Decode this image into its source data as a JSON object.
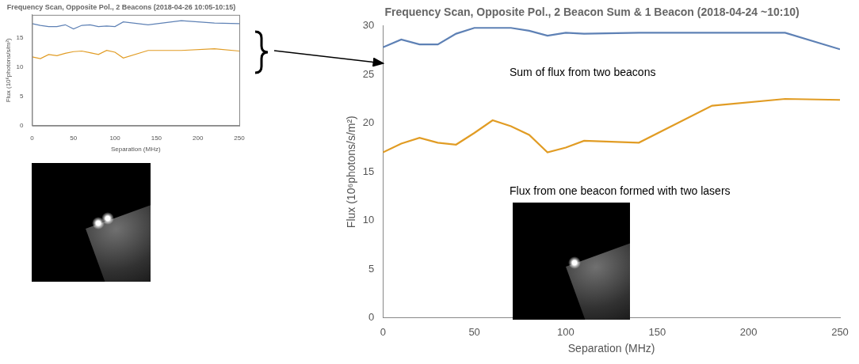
{
  "chart_data": [
    {
      "type": "line",
      "title": "Frequency Scan, Opposite Pol., 2 Beacons (2018-04-26 10:05-10:15)",
      "x_label": "Separation (MHz)",
      "y_label": "Flux (10⁶photons/s/m²)",
      "x": [
        0,
        10,
        20,
        30,
        40,
        50,
        60,
        70,
        80,
        90,
        100,
        110,
        140,
        180,
        220,
        250
      ],
      "series": [
        {
          "color": "#5e81b5",
          "values": [
            17.5,
            17.2,
            17.0,
            17.0,
            17.3,
            16.6,
            17.2,
            17.3,
            17.0,
            17.1,
            17.0,
            17.8,
            17.3,
            18.0,
            17.6,
            17.5
          ]
        },
        {
          "color": "#e19c24",
          "values": [
            11.8,
            11.5,
            12.2,
            12.0,
            12.4,
            12.7,
            12.8,
            12.5,
            12.2,
            12.9,
            12.6,
            11.6,
            12.9,
            12.9,
            13.2,
            12.8
          ]
        }
      ],
      "xlim": [
        0,
        250
      ],
      "xticks": [
        0,
        50,
        100,
        150,
        200,
        250
      ],
      "ylim": [
        0,
        19
      ],
      "yticks": [
        0,
        5,
        10,
        15
      ],
      "grid": false
    },
    {
      "type": "line",
      "title": "Frequency Scan, Opposite Pol., 2 Beacon Sum & 1 Beacon (2018-04-24 ~10:10)",
      "x_label": "Separation (MHz)",
      "y_label": "Flux (10⁶photons/s/m²)",
      "x": [
        0,
        10,
        20,
        30,
        40,
        50,
        60,
        70,
        80,
        90,
        100,
        110,
        140,
        180,
        220,
        250
      ],
      "series": [
        {
          "color": "#5e81b5",
          "values": [
            27.8,
            28.6,
            28.1,
            28.1,
            29.2,
            29.8,
            29.8,
            29.8,
            29.5,
            29.0,
            29.3,
            29.2,
            29.3,
            29.3,
            29.3,
            27.6
          ]
        },
        {
          "color": "#e19c24",
          "values": [
            17.0,
            17.9,
            18.5,
            18.0,
            17.8,
            19.0,
            20.3,
            19.7,
            18.8,
            17.0,
            17.5,
            18.2,
            18.0,
            21.8,
            22.5,
            22.4
          ]
        }
      ],
      "xlim": [
        0,
        250
      ],
      "xticks": [
        0,
        50,
        100,
        150,
        200,
        250
      ],
      "ylim": [
        0,
        30
      ],
      "yticks": [
        0,
        5,
        10,
        15,
        20,
        25,
        30
      ],
      "grid": false,
      "annotations": [
        "Sum of flux from two beacons",
        "Flux from one beacon formed with two lasers"
      ]
    }
  ]
}
